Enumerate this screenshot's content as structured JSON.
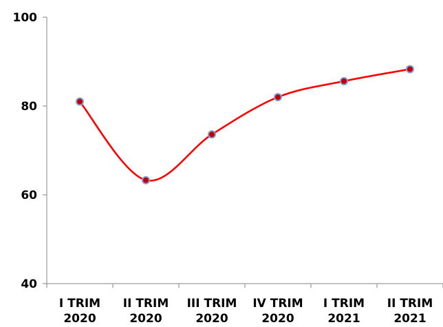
{
  "chart_data": {
    "type": "line",
    "title": "",
    "xlabel": "",
    "ylabel": "",
    "categories": [
      [
        "I TRIM",
        "2020"
      ],
      [
        "II TRIM",
        "2020"
      ],
      [
        "III TRIM",
        "2020"
      ],
      [
        "IV TRIM",
        "2020"
      ],
      [
        "I TRIM",
        "2021"
      ],
      [
        "II TRIM",
        "2021"
      ]
    ],
    "series": [
      {
        "values": [
          81.0,
          63.3,
          73.6,
          82.0,
          85.6,
          88.3
        ],
        "line_color": "#ff0000",
        "marker_fill": "#c00000",
        "marker_edge": "#7f9fd6"
      }
    ],
    "ylim": [
      40,
      100
    ],
    "yticks": [
      40,
      60,
      80,
      100
    ],
    "grid": false,
    "smooth": true,
    "legend": "none"
  }
}
